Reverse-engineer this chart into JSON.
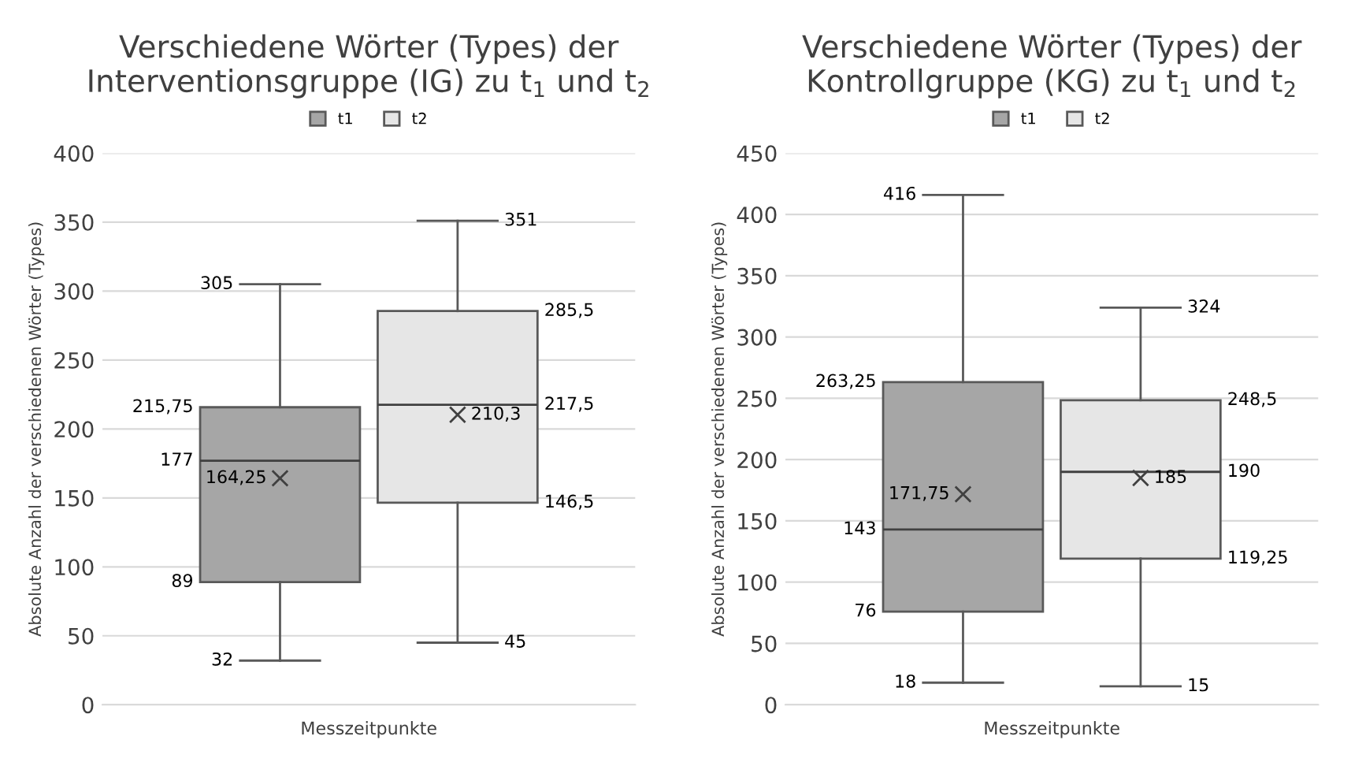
{
  "chart_data": [
    {
      "type": "box",
      "title": "Verschiedene Wörter (Types) der\nInterventionsgruppe (IG) zu t$_{1}$ und t$_{2}$",
      "xlabel": "Messzeitpunkte",
      "ylabel": "Absolute Anzahl der verschiedenen Wörter (Types)",
      "categories": [
        null
      ],
      "ylim": [
        0,
        400
      ],
      "yticks": [
        0,
        50,
        100,
        150,
        200,
        250,
        300,
        350,
        400
      ],
      "grid": "y",
      "legend": "top",
      "marker": "cross",
      "series": [
        {
          "name": "t1",
          "color": "#a6a6a6",
          "boxes": [
            {
              "low": 32,
              "q1": 89,
              "median": 177,
              "q3": 215.75,
              "high": 305,
              "mean": 164.25
            }
          ],
          "value_labels": [
            [
              "32",
              "89",
              "177",
              "215,75",
              "305",
              "164,25"
            ]
          ]
        },
        {
          "name": "t2",
          "color": "#e6e6e6",
          "boxes": [
            {
              "low": 45,
              "q1": 146.5,
              "median": 217.5,
              "q3": 285.5,
              "high": 351,
              "mean": 210.3
            }
          ],
          "value_labels": [
            [
              "45",
              "146,5",
              "217,5",
              "285,5",
              "351",
              "210,3"
            ]
          ]
        }
      ]
    },
    {
      "type": "box",
      "title": "Verschiedene Wörter (Types) der\nKontrollgruppe (KG) zu t$_{1}$ und t$_{2}$",
      "xlabel": "Messzeitpunkte",
      "ylabel": "Absolute Anzahl der verschiedenen Wörter (Types)",
      "categories": [
        null
      ],
      "ylim": [
        0,
        450
      ],
      "yticks": [
        0,
        50,
        100,
        150,
        200,
        250,
        300,
        350,
        400,
        450
      ],
      "grid": "y",
      "legend": "top",
      "marker": "cross",
      "series": [
        {
          "name": "t1",
          "color": "#a6a6a6",
          "boxes": [
            {
              "low": 18,
              "q1": 76,
              "median": 143,
              "q3": 263.25,
              "high": 416,
              "mean": 171.75
            }
          ],
          "value_labels": [
            [
              "18",
              "76",
              "143",
              "263,25",
              "416",
              "171,75"
            ]
          ]
        },
        {
          "name": "t2",
          "color": "#e6e6e6",
          "boxes": [
            {
              "low": 15,
              "q1": 119.25,
              "median": 190,
              "q3": 248.5,
              "high": 324,
              "mean": 185
            }
          ],
          "value_labels": [
            [
              "15",
              "119,25",
              "190",
              "248,5",
              "324",
              "185"
            ]
          ]
        }
      ]
    }
  ]
}
